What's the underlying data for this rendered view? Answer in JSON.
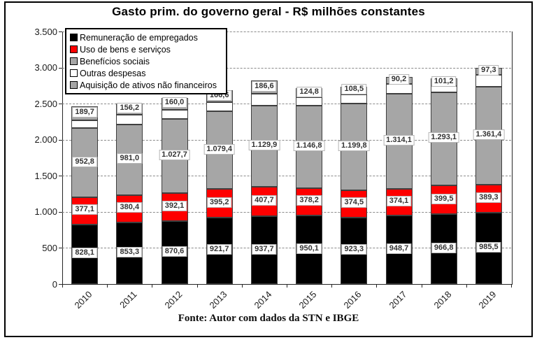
{
  "figure": {
    "title": "Gasto prim. do governo geral - R$ milhões constantes",
    "source": "Fonte: Autor com dados da STN e IBGE"
  },
  "chart_data": {
    "type": "bar",
    "stacked": true,
    "title": "Gasto prim. do governo geral - R$ milhões constantes",
    "categories": [
      "2010",
      "2011",
      "2012",
      "2013",
      "2014",
      "2015",
      "2016",
      "2017",
      "2018",
      "2019"
    ],
    "series": [
      {
        "name": "Remuneração de empregados",
        "color": "#000000",
        "values": [
          828.1,
          853.3,
          870.6,
          921.7,
          937.7,
          950.1,
          923.3,
          948.7,
          966.8,
          985.5
        ],
        "labels": [
          "828,1",
          "853,3",
          "870,6",
          "921,7",
          "937,7",
          "950,1",
          "923,3",
          "948,7",
          "966,8",
          "985,5"
        ]
      },
      {
        "name": "Uso de bens e serviços",
        "color": "#fe0000",
        "values": [
          377.1,
          380.4,
          392.1,
          395.2,
          407.7,
          378.2,
          374.5,
          374.1,
          399.5,
          389.3
        ],
        "labels": [
          "377,1",
          "380,4",
          "392,1",
          "395,2",
          "407,7",
          "378,2",
          "374,5",
          "374,1",
          "399,5",
          "389,3"
        ]
      },
      {
        "name": "Benefícios sociais",
        "color": "#a6a6a6",
        "values": [
          952.8,
          981.0,
          1027.7,
          1079.4,
          1129.9,
          1146.8,
          1199.8,
          1314.1,
          1293.1,
          1361.4
        ],
        "labels": [
          "952,8",
          "981,0",
          "1.027,7",
          "1.079,4",
          "1.129,9",
          "1.146,8",
          "1.199,8",
          "1.314,1",
          "1.293,1",
          "1.361,4"
        ]
      },
      {
        "name": "Outras despesas",
        "color": "#ffffff",
        "values": [
          115,
          135,
          127,
          123,
          157,
          112,
          130,
          140,
          85,
          167
        ],
        "labels": null,
        "estimated": true
      },
      {
        "name": "Aquisição de ativos não financeiros",
        "color": "#a6a6a6",
        "values": [
          189.7,
          156.2,
          160.0,
          166.6,
          186.6,
          124.8,
          108.5,
          90.2,
          101.2,
          97.3
        ],
        "labels": [
          "189,7",
          "156,2",
          "160,0",
          "166,6",
          "186,6",
          "124,8",
          "108,5",
          "90,2",
          "101,2",
          "97,3"
        ]
      }
    ],
    "ylim": [
      0,
      3500
    ],
    "yticks": [
      "0",
      "500",
      "1.000",
      "1.500",
      "2.000",
      "2.500",
      "3.000",
      "3.500"
    ],
    "grid": "dashed-horizontal",
    "legend_position": "top-left-inside",
    "source": "Fonte: Autor com dados da STN e IBGE"
  }
}
